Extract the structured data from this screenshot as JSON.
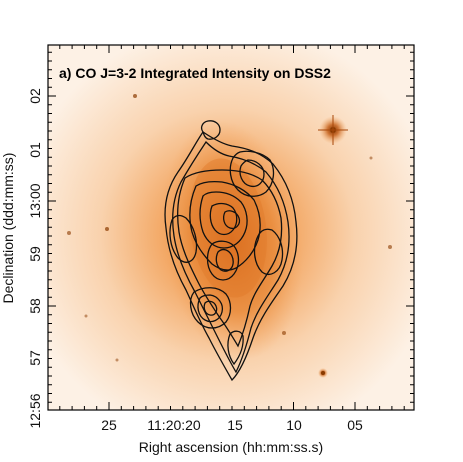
{
  "panel_title": "a) CO J=3-2 Integrated Intensity on DSS2",
  "x_axis": {
    "label": "Right ascension (hh:mm:ss.s)",
    "ticks": [
      "25",
      "11:20:20",
      "15",
      "10",
      "05"
    ]
  },
  "y_axis": {
    "label": "Declination (ddd:mm:ss)",
    "ticks": [
      "02",
      "01",
      "13:00",
      "59",
      "58",
      "57",
      "12:56"
    ]
  },
  "colors": {
    "background_glow": "#f6b47a",
    "galaxy_core": "#e07a2a",
    "contours": "#111111",
    "frame": "#000000"
  }
}
